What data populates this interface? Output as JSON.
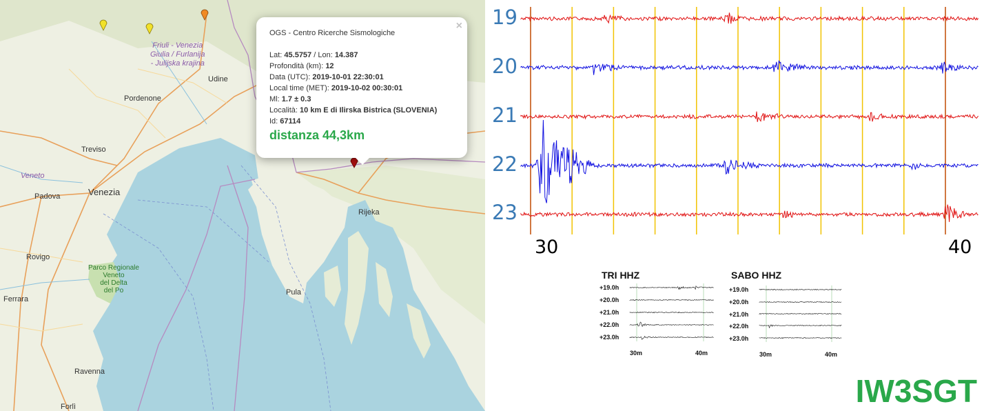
{
  "map": {
    "labels": {
      "region_line1": "Friuli - Venezia",
      "region_line2": "Giulia / Furlanija",
      "region_line3": "- Julijska krajina",
      "udine": "Udine",
      "pordenone": "Pordenone",
      "treviso": "Treviso",
      "veneto": "Veneto",
      "venezia": "Venezia",
      "padova": "Padova",
      "rovigo": "Rovigo",
      "ferrara": "Ferrara",
      "park_line1": "Parco Regionale",
      "park_line2": "Veneto",
      "park_line3": "del Delta",
      "park_line4": "del Po",
      "pula": "Pula",
      "rijeka": "Rijeka",
      "ravenna": "Ravenna",
      "forli": "Forlì"
    },
    "markers": [
      {
        "name": "yellow-marker-1",
        "color": "#f1e12a"
      },
      {
        "name": "yellow-marker-2",
        "color": "#f1e12a"
      },
      {
        "name": "orange-marker",
        "color": "#f08a24"
      },
      {
        "name": "red-marker",
        "color": "#b01010"
      }
    ]
  },
  "popup": {
    "close_label": "×",
    "title": "OGS - Centro Ricerche Sismologiche",
    "lat_label": "Lat: ",
    "lat_value": "45.5757",
    "lon_label": " / Lon: ",
    "lon_value": "14.387",
    "depth_label": "Profondità (km): ",
    "depth_value": "12",
    "utc_label": "Data (UTC): ",
    "utc_value": "2019-10-01 22:30:01",
    "local_label": "Local time (MET): ",
    "local_value": "2019-10-02 00:30:01",
    "ml_label": "Ml: ",
    "ml_value": "1.7 ± 0.3",
    "loc_label": "Località: ",
    "loc_value": "10 km E di Ilirska Bistrica (SLOVENIA)",
    "id_label": "Id: ",
    "id_value": "67114",
    "distance": "distanza 44,3km"
  },
  "seismogram": {
    "hours": [
      "19",
      "20",
      "21",
      "22",
      "23"
    ],
    "minute_start": "30",
    "minute_end": "40",
    "trace_colors": [
      "#e01010",
      "#1010e0",
      "#e01010",
      "#1010e0",
      "#e01010"
    ],
    "grid_color": "#f2c200",
    "boundary_color": "#c04a00"
  },
  "stations": [
    {
      "title": "TRI HHZ",
      "rows": [
        "+19.0h",
        "+20.0h",
        "+21.0h",
        "+22.0h",
        "+23.0h"
      ],
      "min_start": "30m",
      "min_end": "40m"
    },
    {
      "title": "SABO HHZ",
      "rows": [
        "+19.0h",
        "+20.0h",
        "+21.0h",
        "+22.0h",
        "+23.0h"
      ],
      "min_start": "30m",
      "min_end": "40m"
    }
  ],
  "callsign": "IW3SGT"
}
